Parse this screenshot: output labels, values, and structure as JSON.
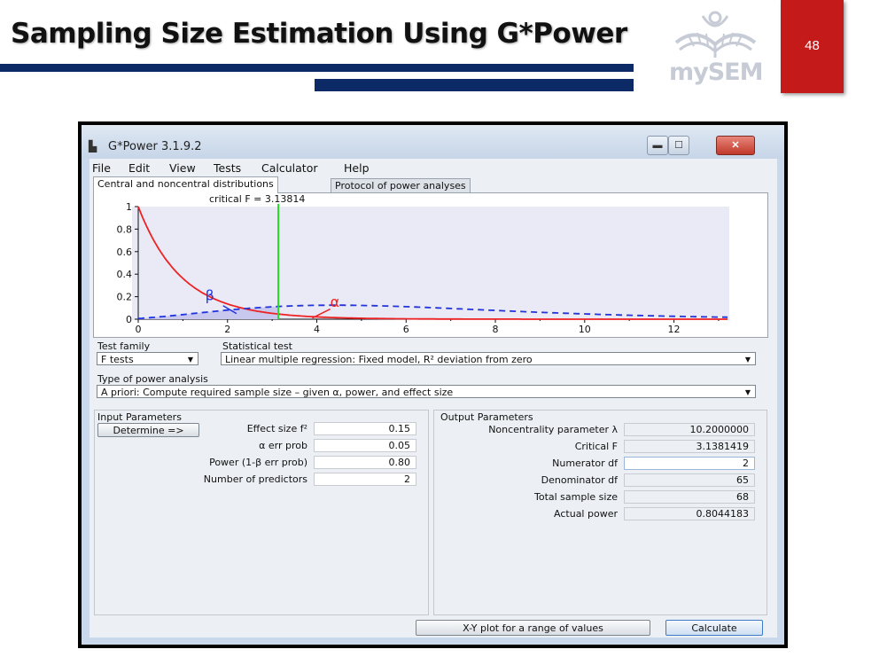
{
  "slide": {
    "title": "Sampling Size Estimation Using G*Power",
    "page_number": "48",
    "logo_text": "mySEM",
    "logo_icon": "open-book-person-icon"
  },
  "window": {
    "title": "G*Power 3.1.9.2",
    "app_icon": "gpower-app-icon",
    "min_icon": "minimize-icon",
    "max_icon": "maximize-icon",
    "close_icon": "close-icon",
    "min_glyph": "▬",
    "max_glyph": "☐",
    "close_glyph": "✕"
  },
  "menu": [
    "File",
    "Edit",
    "View",
    "Tests",
    "Calculator",
    "Help"
  ],
  "tabs": [
    "Central and noncentral distributions",
    "Protocol of power analyses"
  ],
  "plot": {
    "critical_label": "critical F = 3.13814",
    "beta_label": "β",
    "alpha_label": "α",
    "x_ticks": [
      "0",
      "2",
      "4",
      "6",
      "8",
      "10",
      "12"
    ],
    "y_ticks": [
      "0",
      "0.2",
      "0.4",
      "0.6",
      "0.8",
      "1"
    ]
  },
  "chart_data": {
    "type": "line",
    "xlim": [
      0,
      13.2
    ],
    "ylim": [
      0,
      1
    ],
    "critical_f": 3.13814,
    "series": [
      {
        "style": "red-solid",
        "df1": 2,
        "df2": 65,
        "ncp": 0
      },
      {
        "style": "blue-dashed",
        "df1": 2,
        "df2": 65,
        "ncp": 10.2
      }
    ],
    "colors": {
      "central": "#ee2222",
      "noncentral": "#2233dd",
      "critical": "#22dd22",
      "beta_fill": "#c8c8ee"
    }
  },
  "selectors": {
    "test_family_label": "Test family",
    "test_family_value": "F tests",
    "statistical_test_label": "Statistical test",
    "statistical_test_value": "Linear multiple regression: Fixed model, R² deviation from zero",
    "power_analysis_label": "Type of power analysis",
    "power_analysis_value": "A priori: Compute required sample size – given α, power, and effect size"
  },
  "input": {
    "title": "Input Parameters",
    "determine_label": "Determine =>",
    "rows": [
      {
        "label": "Effect size f²",
        "value": "0.15"
      },
      {
        "label": "α err prob",
        "value": "0.05"
      },
      {
        "label": "Power (1-β err prob)",
        "value": "0.80"
      },
      {
        "label": "Number of predictors",
        "value": "2"
      }
    ]
  },
  "output": {
    "title": "Output Parameters",
    "rows": [
      {
        "label": "Noncentrality parameter λ",
        "value": "10.2000000"
      },
      {
        "label": "Critical F",
        "value": "3.1381419"
      },
      {
        "label": "Numerator df",
        "value": "2"
      },
      {
        "label": "Denominator df",
        "value": "65"
      },
      {
        "label": "Total sample size",
        "value": "68"
      },
      {
        "label": "Actual power",
        "value": "0.8044183"
      }
    ]
  },
  "buttons": {
    "xy_plot": "X-Y plot for a range of values",
    "calculate": "Calculate"
  }
}
